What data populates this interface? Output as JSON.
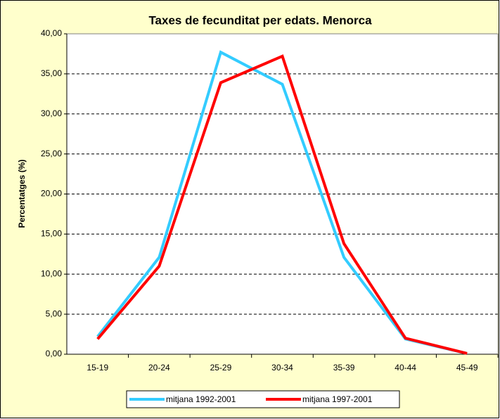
{
  "chart_data": {
    "type": "line",
    "title": "Taxes de fecunditat per edats. Menorca",
    "y_label": "Percentatges (%)",
    "categories": [
      "15-19",
      "20-24",
      "25-29",
      "30-34",
      "35-39",
      "40-44",
      "45-49"
    ],
    "series": [
      {
        "name": "mitjana 1992-2001",
        "color": "#33ccff",
        "values": [
          2.2,
          12.1,
          37.7,
          33.7,
          12.1,
          1.9,
          0.1
        ]
      },
      {
        "name": "mitjana 1997-2001",
        "color": "#ff0000",
        "values": [
          1.9,
          11.0,
          33.9,
          37.2,
          13.8,
          2.0,
          0.1
        ]
      }
    ],
    "ylim": [
      0,
      40
    ],
    "yticks": [
      {
        "value": 0,
        "label": "0,00"
      },
      {
        "value": 5,
        "label": "5,00"
      },
      {
        "value": 10,
        "label": "10,00"
      },
      {
        "value": 15,
        "label": "15,00"
      },
      {
        "value": 20,
        "label": "20,00"
      },
      {
        "value": 25,
        "label": "25,00"
      },
      {
        "value": 30,
        "label": "30,00"
      },
      {
        "value": 35,
        "label": "35,00"
      },
      {
        "value": 40,
        "label": "40,00"
      }
    ],
    "grid": true,
    "legend": "bottom"
  }
}
